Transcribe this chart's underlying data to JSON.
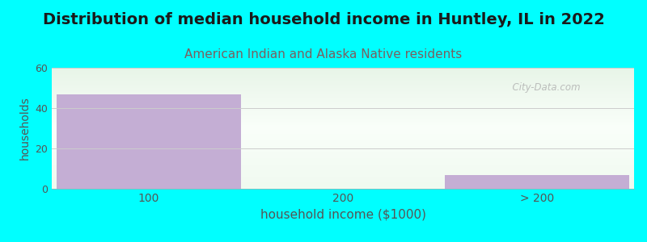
{
  "title": "Distribution of median household income in Huntley, IL in 2022",
  "subtitle": "American Indian and Alaska Native residents",
  "categories": [
    "100",
    "200",
    "> 200"
  ],
  "values": [
    47,
    0,
    7
  ],
  "bar_color": "#c4aed4",
  "background_color": "#00ffff",
  "plot_bg_top": "#e8f5e8",
  "plot_bg_bottom": "#f8fff8",
  "xlabel": "household income ($1000)",
  "ylabel": "households",
  "ylim": [
    0,
    60
  ],
  "yticks": [
    0,
    20,
    40,
    60
  ],
  "title_fontsize": 14,
  "subtitle_fontsize": 11,
  "subtitle_color": "#7a6060",
  "title_color": "#1a1a1a",
  "xlabel_color": "#555555",
  "ylabel_color": "#555555",
  "tick_color": "#555555",
  "grid_color": "#cccccc",
  "watermark": "  City-Data.com",
  "watermark_color": "#aaaaaa"
}
